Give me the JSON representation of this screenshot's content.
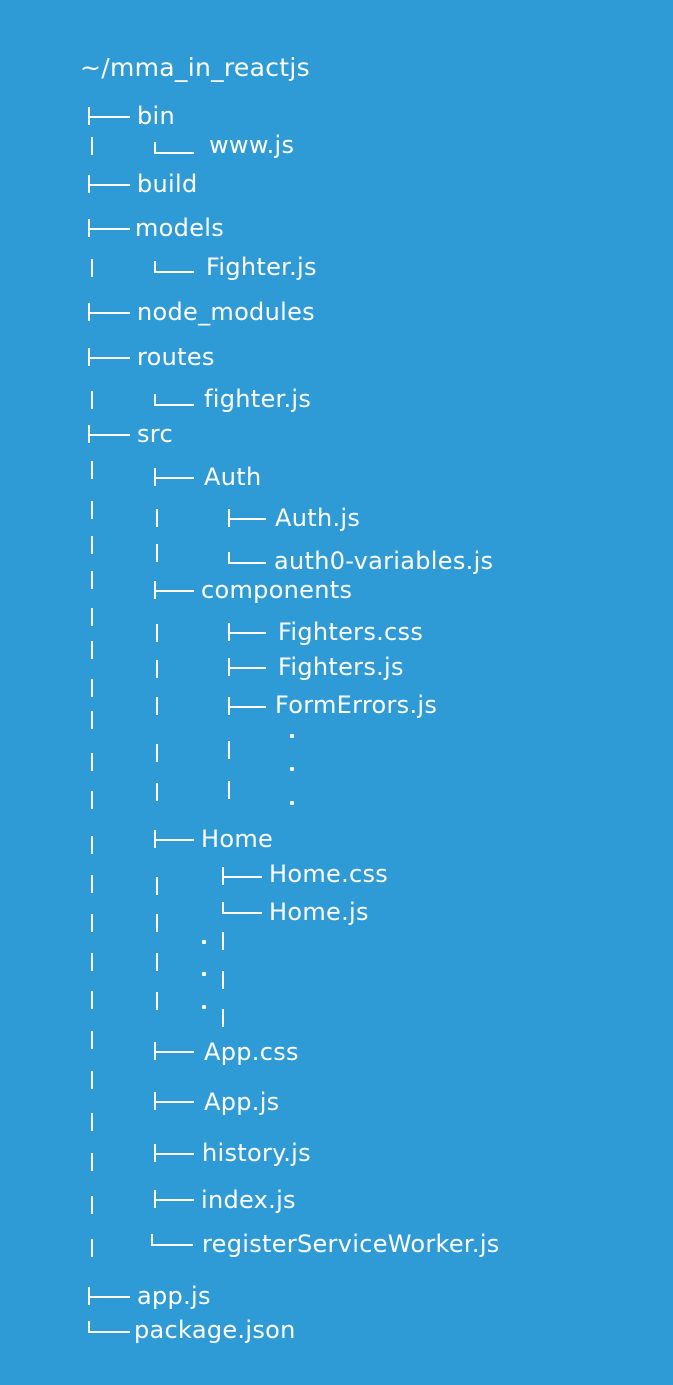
{
  "root": "~/mma_in_reactjs",
  "items": [
    "bin",
    "www.js",
    "build",
    "models",
    "Fighter.js",
    "node_modules",
    "routes",
    "fighter.js",
    "src",
    "Auth",
    "Auth.js",
    "auth0-variables.js",
    "components",
    "Fighters.css",
    "Fighters.js",
    "FormErrors.js",
    "Home",
    "Home.css",
    "Home.js",
    "App.css",
    "App.js",
    "history.js",
    "index.js",
    "registerServiceWorker.js",
    "app.js",
    "package.json"
  ]
}
